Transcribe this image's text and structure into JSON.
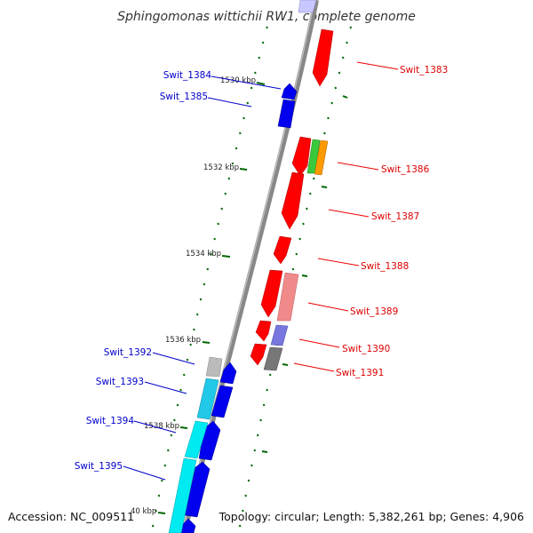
{
  "title": "Sphingomonas wittichii RW1, complete genome",
  "footer": {
    "accession": "Accession: NC_009511",
    "topology": "Topology: circular; Length: 5,382,261 bp; Genes: 4,906"
  },
  "ticks": [
    "1530 kbp",
    "1532 kbp",
    "1534 kbp",
    "1536 kbp",
    "1538 kbp",
    "40 kbp"
  ],
  "labels_left": [
    "Swit_1384",
    "Swit_1385",
    "Swit_1392",
    "Swit_1393",
    "Swit_1394",
    "Swit_1395"
  ],
  "labels_right": [
    "Swit_1383",
    "Swit_1386",
    "Swit_1387",
    "Swit_1388",
    "Swit_1389",
    "Swit_1390",
    "Swit_1391"
  ],
  "colors": {
    "forward": "#ff0000",
    "reverse": "#0000ee",
    "cyan": "#00e5f0",
    "backbone": "#888888",
    "tick": "#006600"
  }
}
